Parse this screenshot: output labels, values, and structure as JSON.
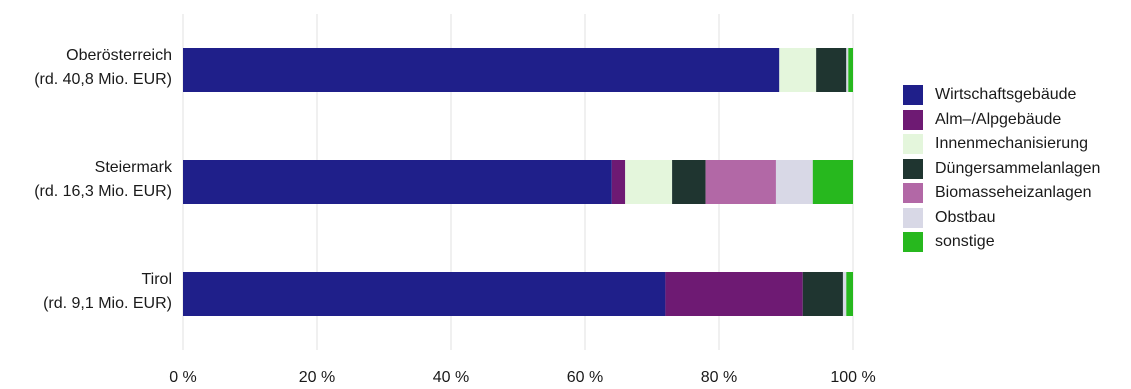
{
  "chart_data": {
    "type": "bar",
    "orientation": "horizontal",
    "stacked": true,
    "categories": [
      {
        "name": "Oberösterreich",
        "sub": "(rd. 40,8 Mio. EUR)"
      },
      {
        "name": "Steiermark",
        "sub": "(rd. 16,3 Mio. EUR)"
      },
      {
        "name": "Tirol",
        "sub": "(rd. 9,1 Mio. EUR)"
      }
    ],
    "series": [
      {
        "name": "Wirtschaftsgebäude",
        "color": "#1f1f8a",
        "values": [
          89,
          64,
          72
        ]
      },
      {
        "name": "Alm–/Alpgebäude",
        "color": "#6e1a73",
        "values": [
          0,
          2,
          20.5
        ]
      },
      {
        "name": "Innenmechanisierung",
        "color": "#e4f6dc",
        "values": [
          5.5,
          7,
          0
        ]
      },
      {
        "name": "Düngersammelanlagen",
        "color": "#1f3530",
        "values": [
          4.5,
          5,
          6
        ]
      },
      {
        "name": "Biomasseheizanlagen",
        "color": "#b268a6",
        "values": [
          0,
          10.5,
          0
        ]
      },
      {
        "name": "Obstbau",
        "color": "#d8d8e6",
        "values": [
          0.3,
          5.5,
          0.5
        ]
      },
      {
        "name": "sonstige",
        "color": "#27b81e",
        "values": [
          0.7,
          6,
          1
        ]
      }
    ],
    "x_ticks": [
      "0 %",
      "20 %",
      "40 %",
      "60 %",
      "80 %",
      "100 %"
    ],
    "xlim": [
      0,
      100
    ],
    "grid": true,
    "legend_position": "right"
  }
}
